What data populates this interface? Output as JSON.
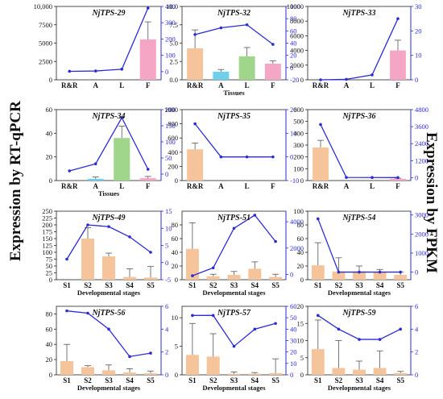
{
  "left_axis_label": "Expression by RT-qPCR",
  "right_axis_label": "Expression by FPKM",
  "colors": {
    "line": "#2b2bd6",
    "right_axis": "#2b2bd6",
    "bar_tissue": [
      "#f6c49a",
      "#6fd0ec",
      "#9fd68c",
      "#f5a6c4"
    ],
    "bar_stage": "#f6c49a",
    "text": "#111111"
  },
  "chart_data": [
    {
      "type": "bar+line",
      "title": "NjTPS-29",
      "xlabel": "",
      "categories": [
        "R&R",
        "A",
        "L",
        "F"
      ],
      "bar_values": [
        0,
        0,
        0,
        5500
      ],
      "error": [
        0,
        0,
        0,
        2400
      ],
      "line_values": [
        2,
        4,
        15,
        390
      ],
      "ylim": [
        0,
        10000
      ],
      "yticks": [
        0,
        2500,
        5000,
        7500,
        10000
      ],
      "yticklabels": [
        "0",
        "2500",
        "5000",
        "7500",
        "10,000"
      ],
      "y2lim": [
        -50,
        400
      ],
      "y2ticks": [
        0,
        100,
        200,
        300,
        400
      ],
      "colorful": true
    },
    {
      "type": "bar+line",
      "title": "NjTPS-32",
      "xlabel": "Tissues",
      "categories": [
        "R&R",
        "A",
        "L",
        "F"
      ],
      "bar_values": [
        4.3,
        1.1,
        3.2,
        2.2
      ],
      "error": [
        2.5,
        0.3,
        1.2,
        0.4
      ],
      "line_values": [
        54,
        65,
        70,
        38
      ],
      "ylim": [
        0,
        10
      ],
      "yticks": [
        0,
        2.5,
        5,
        7.5,
        10
      ],
      "yticklabels": [
        "0.0",
        "2.5",
        "5.0",
        "7.5",
        "10.0"
      ],
      "y2lim": [
        -20,
        100
      ],
      "y2ticks": [
        -20,
        0,
        20,
        40,
        60,
        80,
        100
      ],
      "colorful": true
    },
    {
      "type": "bar+line",
      "title": "NjTPS-33",
      "xlabel": "",
      "categories": [
        "R&R",
        "A",
        "L",
        "F"
      ],
      "bar_values": [
        0,
        0,
        0,
        4000
      ],
      "error": [
        0,
        0,
        0,
        1400
      ],
      "line_values": [
        0,
        0.2,
        2,
        25
      ],
      "ylim": [
        0,
        10000
      ],
      "yticks": [
        0,
        2000,
        4000,
        6000,
        8000,
        10000
      ],
      "yticklabels": [
        "0",
        "2000",
        "4000",
        "6000",
        "8000",
        "10000"
      ],
      "y2lim": [
        0,
        30
      ],
      "y2ticks": [
        0,
        10,
        20,
        30
      ],
      "colorful": true
    },
    {
      "type": "bar+line",
      "title": "NjTPS-34",
      "xlabel": "Tissues",
      "categories": [
        "R&R",
        "A",
        "L",
        "F"
      ],
      "bar_values": [
        0,
        1.5,
        36,
        2
      ],
      "error": [
        0,
        1.5,
        10,
        1.5
      ],
      "line_values": [
        10,
        32,
        175,
        15
      ],
      "ylim": [
        0,
        60
      ],
      "yticks": [
        0,
        20,
        40,
        60
      ],
      "yticklabels": [
        "0",
        "20",
        "40",
        "60"
      ],
      "y2lim": [
        -20,
        200
      ],
      "y2ticks": [
        0,
        50,
        100,
        150,
        200
      ],
      "colorful": true
    },
    {
      "type": "bar+line",
      "title": "NjTPS-35",
      "xlabel": "",
      "categories": [
        "R&R",
        "A",
        "L",
        "F"
      ],
      "bar_values": [
        440,
        0,
        0,
        0
      ],
      "error": [
        90,
        0,
        0,
        0
      ],
      "line_values": [
        14,
        0,
        0,
        0
      ],
      "ylim": [
        0,
        1000
      ],
      "yticks": [
        0,
        200,
        400,
        600,
        800,
        1000
      ],
      "yticklabels": [
        "0",
        "200",
        "400",
        "600",
        "800",
        "1000"
      ],
      "y2lim": [
        -10,
        20
      ],
      "y2ticks": [
        -10,
        0,
        10,
        20
      ],
      "colorful": true
    },
    {
      "type": "bar+line",
      "title": "NjTPS-36",
      "xlabel": "",
      "categories": [
        "R&R",
        "A",
        "L",
        "F"
      ],
      "bar_values": [
        280,
        0,
        0,
        15
      ],
      "error": [
        60,
        0,
        0,
        5
      ],
      "line_values": [
        3750,
        20,
        15,
        10
      ],
      "ylim": [
        0,
        600
      ],
      "yticks": [
        0,
        100,
        200,
        300,
        400,
        500,
        600
      ],
      "yticklabels": [
        "0",
        "100",
        "200",
        "300",
        "400",
        "500",
        "600"
      ],
      "y2lim": [
        -200,
        4800
      ],
      "y2ticks": [
        0,
        1200,
        2400,
        3600,
        4800
      ],
      "colorful": true
    },
    {
      "type": "bar+line",
      "title": "NjTPS-49",
      "xlabel": "Developmental stages",
      "categories": [
        "S1",
        "S2",
        "S3",
        "S4",
        "S5"
      ],
      "bar_values": [
        0,
        150,
        85,
        10,
        8
      ],
      "error": [
        0,
        40,
        12,
        30,
        40
      ],
      "line_values": [
        1,
        11,
        10.5,
        7.5,
        3
      ],
      "ylim": [
        0,
        250
      ],
      "yticks": [
        0,
        25,
        50,
        75,
        100,
        125,
        150,
        175,
        200,
        225,
        250
      ],
      "yticklabels": [
        "0",
        "25",
        "50",
        "75",
        "100",
        "125",
        "150",
        "175",
        "200",
        "225",
        "250"
      ],
      "y2lim": [
        -5,
        15
      ],
      "y2ticks": [
        -5,
        0,
        5,
        10,
        15
      ],
      "colorful": false
    },
    {
      "type": "bar+line",
      "title": "NjTPS-51",
      "xlabel": "Developmental stages",
      "categories": [
        "S1",
        "S2",
        "S3",
        "S4",
        "S5"
      ],
      "bar_values": [
        45,
        5,
        7,
        16,
        4
      ],
      "error": [
        38,
        3,
        5,
        10,
        4
      ],
      "line_values": [
        -100,
        500,
        3500,
        4500,
        2500
      ],
      "ylim": [
        0,
        100
      ],
      "yticks": [
        0,
        20,
        40,
        60,
        80
      ],
      "yticklabels": [
        "0",
        "20",
        "40",
        "60",
        "80"
      ],
      "y2lim": [
        -400,
        4800
      ],
      "y2ticks": [
        0,
        2000,
        4000
      ],
      "colorful": false
    },
    {
      "type": "bar+line",
      "title": "NjTPS-54",
      "xlabel": "Developmental stages",
      "categories": [
        "S1",
        "S2",
        "S3",
        "S4",
        "S5"
      ],
      "bar_values": [
        21,
        12,
        12,
        11,
        7
      ],
      "error": [
        33,
        20,
        8,
        4,
        4
      ],
      "line_values": [
        2800,
        0,
        0,
        0,
        0
      ],
      "ylim": [
        0,
        100
      ],
      "yticks": [
        0,
        20,
        40,
        60,
        80,
        100
      ],
      "yticklabels": [
        "0",
        "20",
        "40",
        "60",
        "80",
        "100"
      ],
      "y2lim": [
        -400,
        3200
      ],
      "y2ticks": [
        0,
        1000,
        2000,
        3000
      ],
      "colorful": false
    },
    {
      "type": "bar+line",
      "title": "NjTPS-56",
      "xlabel": "Developmental stages",
      "categories": [
        "S1",
        "S2",
        "S3",
        "S4",
        "S5"
      ],
      "bar_values": [
        18,
        10,
        6,
        3,
        2
      ],
      "error": [
        22,
        2,
        7,
        5,
        3
      ],
      "line_values": [
        5.6,
        5.4,
        4,
        1.6,
        1.9
      ],
      "ylim": [
        0,
        90
      ],
      "yticks": [
        0,
        20,
        40,
        60,
        80
      ],
      "yticklabels": [
        "0",
        "20",
        "40",
        "60",
        "80"
      ],
      "y2lim": [
        0,
        6
      ],
      "y2ticks": [
        0,
        2,
        4,
        6
      ],
      "colorful": false
    },
    {
      "type": "bar+line",
      "title": "NjTPS-57",
      "xlabel": "Developmental stages",
      "categories": [
        "S1",
        "S2",
        "S3",
        "S4",
        "S5"
      ],
      "bar_values": [
        3.5,
        3.2,
        0.2,
        0.2,
        0.3
      ],
      "error": [
        5.5,
        4,
        0.3,
        0.2,
        2.5
      ],
      "line_values": [
        52,
        52,
        25,
        40,
        45
      ],
      "ylim": [
        0,
        12
      ],
      "yticks": [
        0,
        5,
        10
      ],
      "yticklabels": [
        "0",
        "5",
        "10"
      ],
      "y2lim": [
        0,
        60
      ],
      "y2ticks": [
        0,
        10,
        20,
        30,
        40,
        50,
        60
      ],
      "colorful": false
    },
    {
      "type": "bar+line",
      "title": "NjTPS-59",
      "xlabel": "Developmental stages",
      "categories": [
        "S1",
        "S2",
        "S3",
        "S4",
        "S5"
      ],
      "bar_values": [
        7.5,
        2,
        1.5,
        2,
        0.5
      ],
      "error": [
        8.5,
        8,
        2.5,
        5,
        0.5
      ],
      "line_values": [
        5.2,
        4,
        3.1,
        3.1,
        4
      ],
      "ylim": [
        0,
        20
      ],
      "yticks": [
        0,
        5,
        10,
        15,
        20
      ],
      "yticklabels": [
        "0",
        "5",
        "10",
        "15",
        "20"
      ],
      "y2lim": [
        0,
        6
      ],
      "y2ticks": [
        0,
        2,
        4,
        6
      ],
      "colorful": false
    }
  ]
}
